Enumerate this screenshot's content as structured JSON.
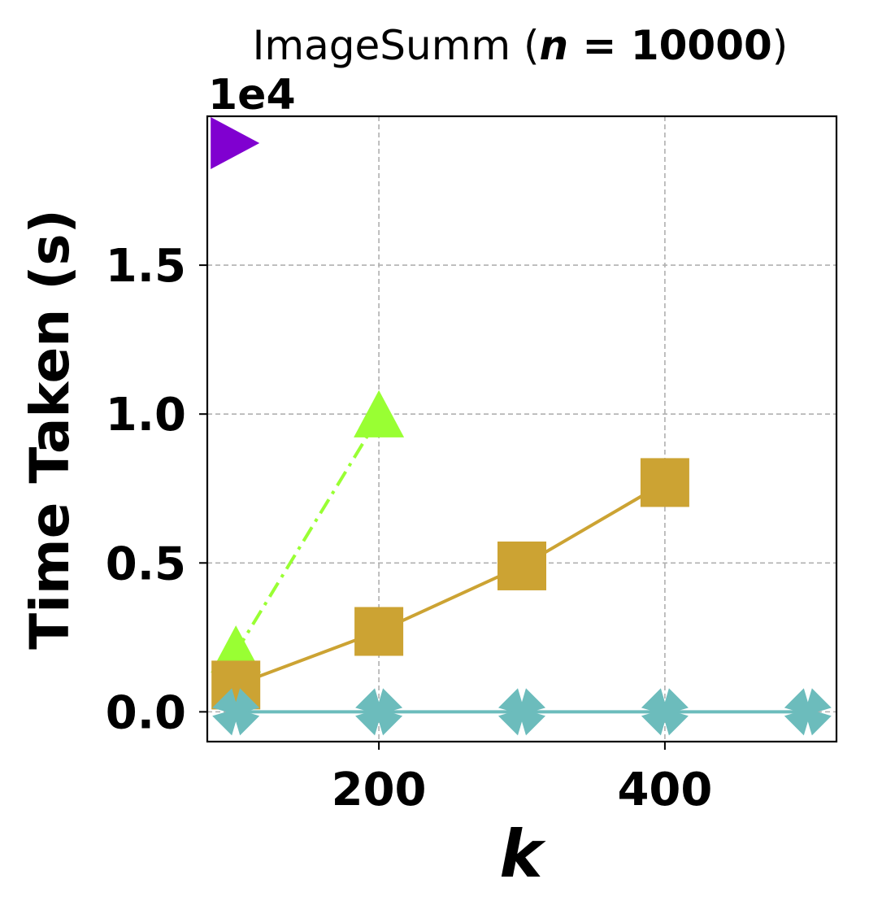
{
  "chart_data": {
    "type": "line",
    "title": {
      "prefix": "ImageSumm (",
      "var": "n",
      "equals": " = ",
      "value": "10000",
      "suffix": ")"
    },
    "xlabel": "k",
    "ylabel": "Time Taken (s)",
    "y_offset_label": "1e4",
    "xlim": [
      80,
      520
    ],
    "ylim": [
      -0.1,
      2.0
    ],
    "x_ticks": [
      200,
      400
    ],
    "x_tick_labels": [
      "200",
      "400"
    ],
    "y_ticks": [
      0.0,
      0.5,
      1.0,
      1.5
    ],
    "y_tick_labels": [
      "0.0",
      "0.5",
      "1.0",
      "1.5"
    ],
    "grid": true,
    "series": [
      {
        "color": "#8000d0",
        "marker": "triangle-right",
        "line": "none",
        "x": [
          100
        ],
        "y": [
          1.91
        ]
      },
      {
        "color": "#99ff33",
        "marker": "triangle-up",
        "line": "dashdot",
        "x": [
          100,
          200
        ],
        "y": [
          0.2,
          0.99
        ]
      },
      {
        "color": "#cca333",
        "marker": "square",
        "line": "solid",
        "x": [
          100,
          200,
          300,
          400
        ],
        "y": [
          0.09,
          0.27,
          0.49,
          0.77
        ]
      },
      {
        "color": "#6cbcbc",
        "marker": "x",
        "line": "solid",
        "x": [
          100,
          200,
          300,
          400,
          500
        ],
        "y": [
          0.0,
          0.0,
          0.0,
          0.0,
          0.0
        ]
      }
    ]
  }
}
